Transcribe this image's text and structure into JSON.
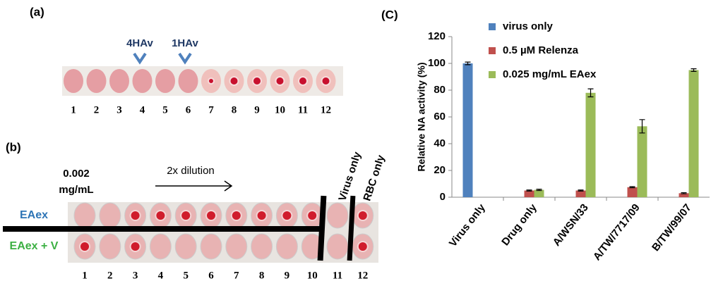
{
  "panel_a": {
    "label": "(a)",
    "markers": [
      "4HAv",
      "1HAv"
    ],
    "well_numbers": [
      "1",
      "2",
      "3",
      "4",
      "5",
      "6",
      "7",
      "8",
      "9",
      "10",
      "11",
      "12"
    ]
  },
  "panel_b": {
    "label": "(b)",
    "concentration": [
      "0.002",
      "mg/mL"
    ],
    "dilution": "2x dilution",
    "controls": [
      "Virus only",
      "RBC only"
    ],
    "rows": [
      "EAex",
      "EAex + V"
    ],
    "well_numbers": [
      "1",
      "2",
      "3",
      "4",
      "5",
      "6",
      "7",
      "8",
      "9",
      "10",
      "11",
      "12"
    ]
  },
  "chart_data": {
    "type": "bar",
    "title": "(C)",
    "y_label": "Relative NA activity (%)",
    "categories": [
      "Virus only",
      "Drug only",
      "A/WSN/33",
      "A/TW/7717/09",
      "B/TW/99/07"
    ],
    "series": [
      {
        "name": "virus only",
        "color": "#4f81bd",
        "values": [
          100,
          null,
          null,
          null,
          null
        ],
        "errors": [
          1,
          null,
          null,
          null,
          null
        ]
      },
      {
        "name": "0.5 µM Relenza",
        "color": "#c0504d",
        "values": [
          null,
          5,
          5,
          7.5,
          3
        ],
        "errors": [
          null,
          0.4,
          0.4,
          0.4,
          0.4
        ]
      },
      {
        "name": "0.025 mg/mL EAex",
        "color": "#9bbb59",
        "values": [
          null,
          5.5,
          78,
          53,
          95
        ],
        "errors": [
          null,
          0.5,
          3,
          5,
          1
        ]
      }
    ],
    "ylim": [
      0,
      120
    ],
    "yticks": [
      0,
      20,
      40,
      60,
      80,
      100,
      120
    ]
  }
}
